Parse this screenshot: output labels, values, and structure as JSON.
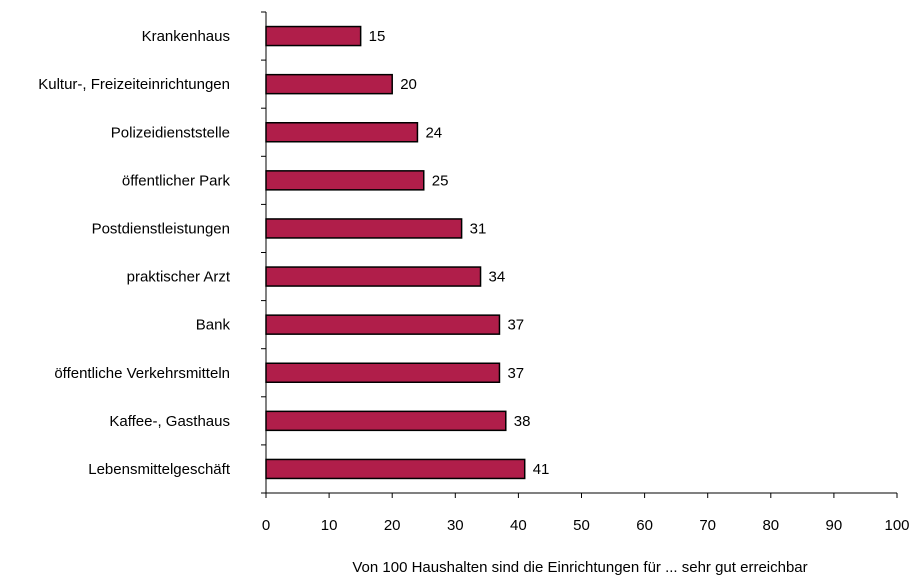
{
  "chart_data": {
    "type": "bar",
    "orientation": "horizontal",
    "categories": [
      "Krankenhaus",
      "Kultur-, Freizeiteinrichtungen",
      "Polizeidienststelle",
      "öffentlicher Park",
      "Postdienstleistungen",
      "praktischer Arzt",
      "Bank",
      "öffentliche Verkehrsmitteln",
      "Kaffee-, Gasthaus",
      "Lebensmittelgeschäft"
    ],
    "values": [
      15,
      20,
      24,
      25,
      31,
      34,
      37,
      37,
      38,
      41
    ],
    "xlabel": "Von 100 Haushalten sind die Einrichtungen für ... sehr gut erreichbar",
    "ylabel": "",
    "xlim": [
      0,
      100
    ],
    "xticks": [
      "0",
      "10",
      "20",
      "30",
      "40",
      "50",
      "60",
      "70",
      "80",
      "90",
      "100"
    ],
    "grid": false,
    "legend": "none",
    "bar_color": "#b01e4a",
    "bar_border_color": "#000000"
  }
}
